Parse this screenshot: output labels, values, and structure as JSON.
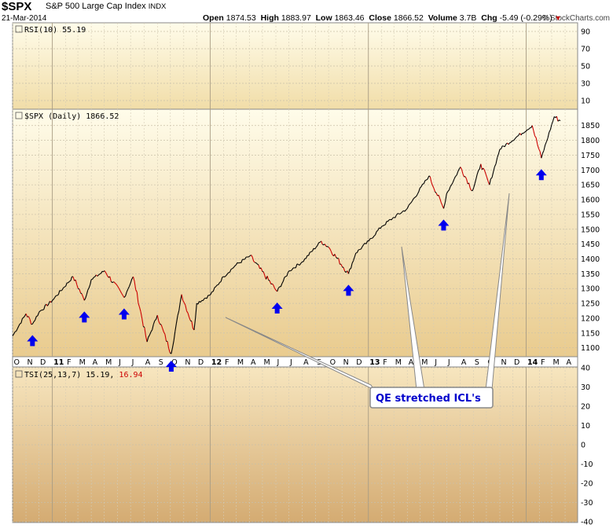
{
  "header": {
    "symbol": "$SPX",
    "name": "S&P 500 Large Cap Index",
    "exchange": "INDX",
    "date": "21-Mar-2014",
    "open_label": "Open",
    "open": "1874.53",
    "high_label": "High",
    "high": "1883.97",
    "low_label": "Low",
    "low": "1863.46",
    "close_label": "Close",
    "close": "1866.52",
    "volume_label": "Volume",
    "volume": "3.7B",
    "chg_label": "Chg",
    "chg": "-5.49 (-0.29%)",
    "chg_arrow": "▼",
    "logo": "© StockCharts.com"
  },
  "colors": {
    "panel_top": "#fffcea",
    "panel_bottom": "#d8b27a",
    "price_up": "#000000",
    "price_down": "#cc0000",
    "arrow": "#0000ee",
    "callout_text": "#0000cc"
  },
  "chart_data": [
    {
      "type": "line",
      "panel": "RSI",
      "label": "RSI(10) 55.19",
      "y_ticks": [
        10,
        30,
        50,
        70,
        90
      ]
    },
    {
      "type": "line",
      "panel": "price",
      "label": "$SPX (Daily) 1866.52",
      "y_ticks": [
        1100,
        1150,
        1200,
        1250,
        1300,
        1350,
        1400,
        1450,
        1500,
        1550,
        1600,
        1650,
        1700,
        1750,
        1800,
        1850
      ],
      "ylim": [
        1070,
        1905
      ],
      "x_months": [
        "O",
        "N",
        "D",
        "11",
        "F",
        "M",
        "A",
        "M",
        "J",
        "J",
        "A",
        "S",
        "O",
        "N",
        "D",
        "12",
        "F",
        "M",
        "A",
        "M",
        "J",
        "J",
        "A",
        "S",
        "O",
        "N",
        "D",
        "13",
        "F",
        "M",
        "A",
        "M",
        "J",
        "J",
        "A",
        "S",
        "O",
        "N",
        "D",
        "14",
        "F",
        "M",
        "A"
      ],
      "year_labels": [
        "11",
        "12",
        "13",
        "14"
      ],
      "x_start": "2010-10-01",
      "x_end": "2014-04-30",
      "series": [
        {
          "x": [
            "2010-10-01",
            "2010-11-01",
            "2010-11-16",
            "2010-12-01",
            "2011-01-01",
            "2011-02-18",
            "2011-03-16",
            "2011-04-01",
            "2011-05-02",
            "2011-06-16",
            "2011-07-07",
            "2011-08-08",
            "2011-09-01",
            "2011-10-03",
            "2011-10-27",
            "2011-11-25",
            "2011-12-01",
            "2012-01-02",
            "2012-02-01",
            "2012-03-01",
            "2012-04-02",
            "2012-06-04",
            "2012-07-02",
            "2012-08-01",
            "2012-09-14",
            "2012-10-01",
            "2012-11-16",
            "2012-12-03",
            "2013-01-02",
            "2013-02-01",
            "2013-03-01",
            "2013-04-01",
            "2013-05-21",
            "2013-06-24",
            "2013-07-01",
            "2013-08-02",
            "2013-08-30",
            "2013-09-18",
            "2013-10-08",
            "2013-11-01",
            "2014-01-15",
            "2014-02-05",
            "2014-03-07",
            "2014-03-21"
          ],
          "values": [
            1140,
            1215,
            1180,
            1220,
            1260,
            1340,
            1260,
            1330,
            1360,
            1270,
            1340,
            1120,
            1210,
            1080,
            1280,
            1160,
            1250,
            1280,
            1340,
            1380,
            1410,
            1290,
            1360,
            1390,
            1460,
            1440,
            1350,
            1420,
            1460,
            1510,
            1540,
            1570,
            1680,
            1570,
            1620,
            1710,
            1630,
            1720,
            1650,
            1770,
            1850,
            1740,
            1880,
            1866
          ]
        }
      ],
      "arrows_at": [
        "2010-11-16",
        "2011-03-16",
        "2011-06-16",
        "2011-10-03",
        "2012-06-04",
        "2012-11-16",
        "2013-06-24",
        "2014-02-05"
      ]
    },
    {
      "type": "line",
      "panel": "TSI",
      "label_main": "TSI(25,13,7) 15.19,",
      "label_signal": "16.94",
      "y_ticks": [
        -40,
        -30,
        -20,
        -10,
        0,
        10,
        20,
        30,
        40
      ]
    }
  ],
  "annotation": {
    "text": "QE stretched ICL's"
  }
}
